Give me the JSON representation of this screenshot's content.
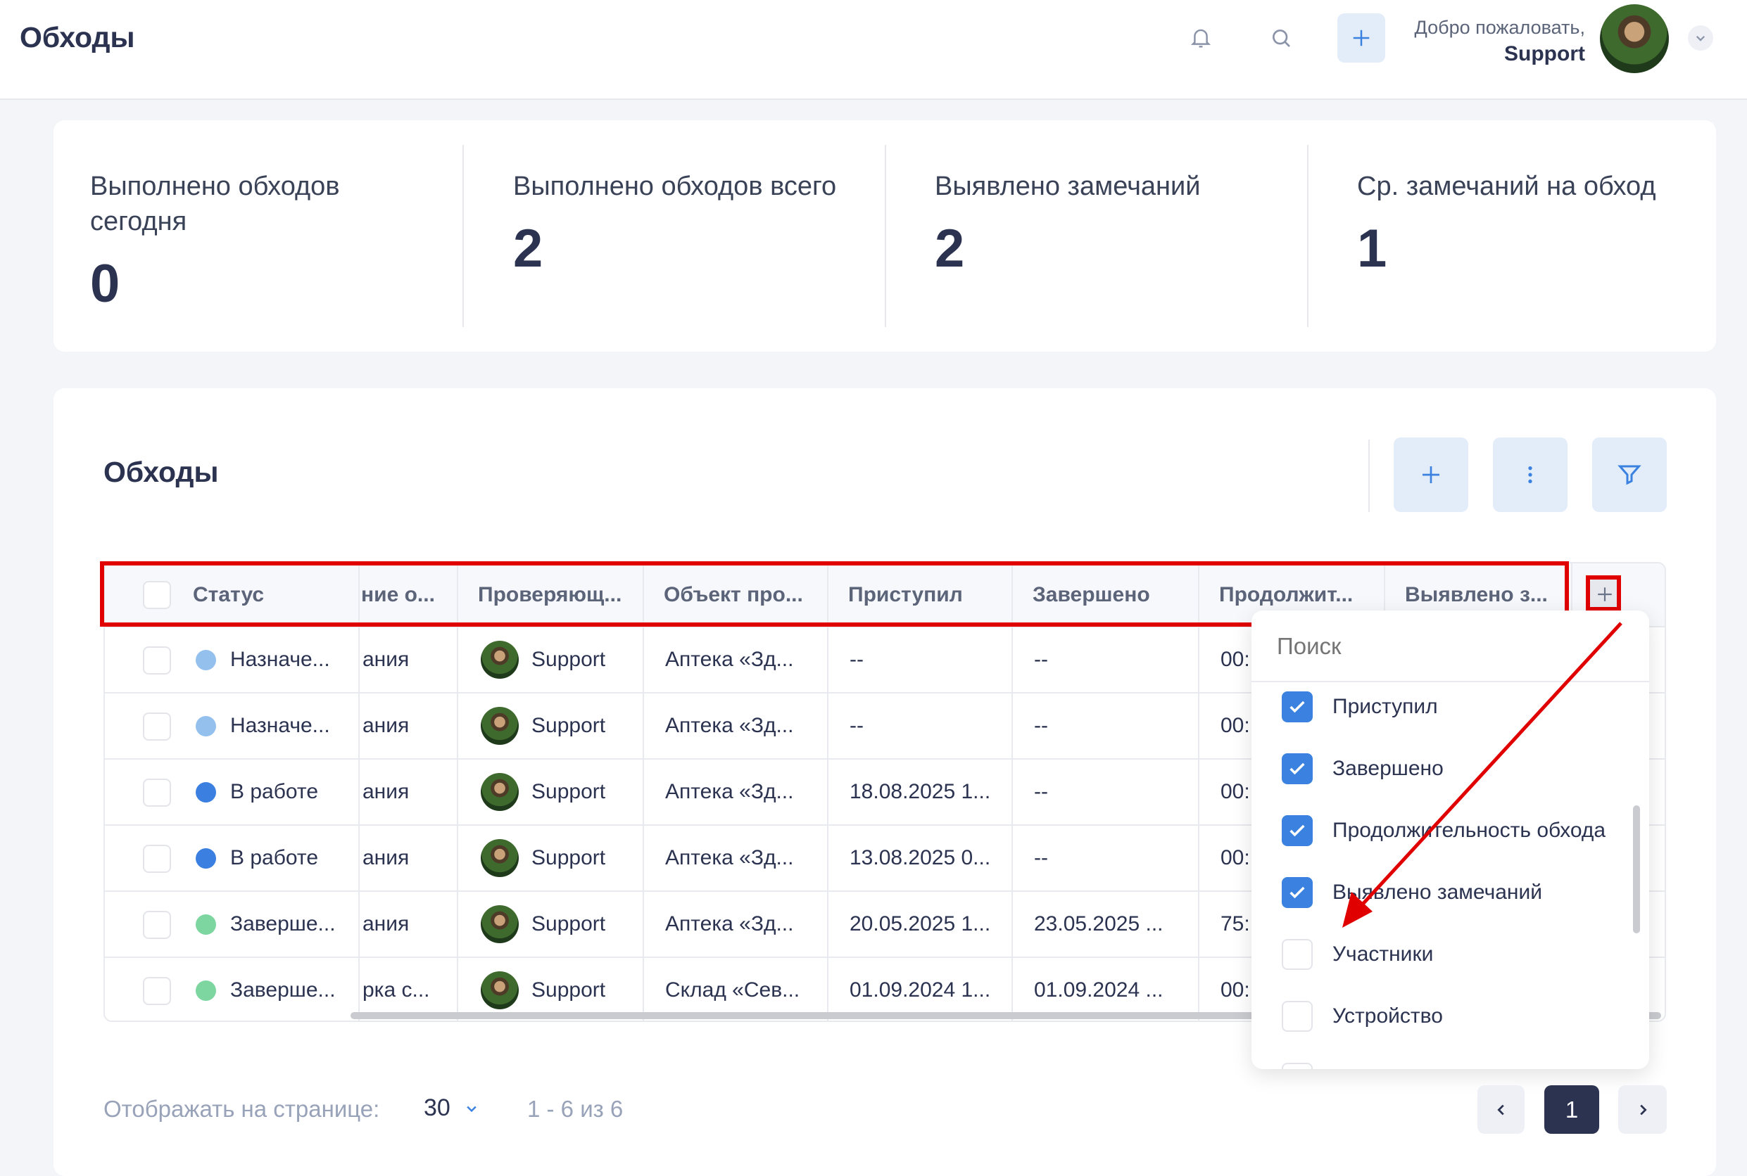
{
  "header": {
    "title": "Обходы",
    "welcome": "Добро пожаловать,",
    "user": "Support",
    "icons": [
      "bell-icon",
      "search-icon",
      "plus-icon",
      "chevron-down-icon"
    ]
  },
  "stats": [
    {
      "label": "Выполнено обходов сегодня",
      "value": "0"
    },
    {
      "label": "Выполнено обходов всего",
      "value": "2"
    },
    {
      "label": "Выявлено замечаний",
      "value": "2"
    },
    {
      "label": "Ср. замечаний на обход",
      "value": "1"
    }
  ],
  "section": {
    "title": "Обходы",
    "buttons": [
      "plus-icon",
      "more-vertical-icon",
      "filter-icon"
    ]
  },
  "table": {
    "columns": [
      "Статус",
      "ние о...",
      "Проверяющ...",
      "Объект про...",
      "Приступил",
      "Завершено",
      "Продолжит...",
      "Выявлено з..."
    ],
    "rows": [
      {
        "status": "Назначе...",
        "status_color": "#94c0ee",
        "name": "ания",
        "inspector": "Support",
        "object": "Аптека «Зд...",
        "started": "--",
        "finished": "--",
        "duration": "00:"
      },
      {
        "status": "Назначе...",
        "status_color": "#94c0ee",
        "name": "ания",
        "inspector": "Support",
        "object": "Аптека «Зд...",
        "started": "--",
        "finished": "--",
        "duration": "00:"
      },
      {
        "status": "В работе",
        "status_color": "#3b7fe0",
        "name": "ания",
        "inspector": "Support",
        "object": "Аптека «Зд...",
        "started": "18.08.2025 1...",
        "finished": "--",
        "duration": "00:"
      },
      {
        "status": "В работе",
        "status_color": "#3b7fe0",
        "name": "ания",
        "inspector": "Support",
        "object": "Аптека «Зд...",
        "started": "13.08.2025 0...",
        "finished": "--",
        "duration": "00:"
      },
      {
        "status": "Заверше...",
        "status_color": "#7dd6a0",
        "name": "ания",
        "inspector": "Support",
        "object": "Аптека «Зд...",
        "started": "20.05.2025 1...",
        "finished": "23.05.2025 ...",
        "duration": "75:"
      },
      {
        "status": "Заверше...",
        "status_color": "#7dd6a0",
        "name": "рка с...",
        "inspector": "Support",
        "object": "Склад «Сев...",
        "started": "01.09.2024 1...",
        "finished": "01.09.2024 ...",
        "duration": "00:"
      }
    ]
  },
  "column_menu": {
    "search_placeholder": "Поиск",
    "items": [
      {
        "label": "Приступил",
        "checked": true
      },
      {
        "label": "Завершено",
        "checked": true
      },
      {
        "label": "Продолжительность обхода",
        "checked": true
      },
      {
        "label": "Выявлено замечаний",
        "checked": true
      },
      {
        "label": "Участники",
        "checked": false
      },
      {
        "label": "Устройство",
        "checked": false
      }
    ]
  },
  "footer": {
    "per_page_label": "Отображать на странице:",
    "per_page": "30",
    "range": "1 - 6 из 6",
    "page": "1"
  },
  "colors": {
    "accent": "#3b82e0",
    "highlight": "#e00000",
    "dark": "#2b3350"
  }
}
